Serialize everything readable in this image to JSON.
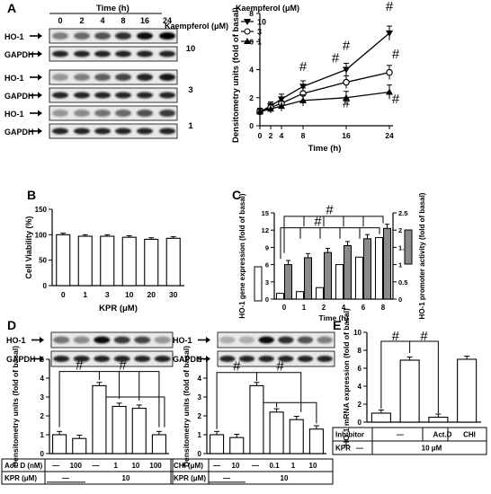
{
  "panels": {
    "A": "A",
    "B": "B",
    "C": "C",
    "D": "D",
    "E": "E"
  },
  "blotA": {
    "time_header": "Time (h)",
    "times": [
      "0",
      "2",
      "4",
      "8",
      "16",
      "24"
    ],
    "kpr_header": "Kaempferol (μM)",
    "groups": [
      {
        "conc": "10",
        "rows": [
          "HO-1",
          "GAPDH"
        ]
      },
      {
        "conc": "3",
        "rows": [
          "HO-1",
          "GAPDH"
        ]
      },
      {
        "conc": "1",
        "rows": [
          "HO-1",
          "GAPDH"
        ]
      }
    ]
  },
  "chart_data": [
    {
      "id": "A",
      "type": "line",
      "xlabel": "Time (h)",
      "ylabel": "Densitometry units (fold of basal)",
      "legend_title": "Kaempferol (μM)",
      "x": [
        0,
        2,
        4,
        8,
        16,
        24
      ],
      "xlim": [
        0,
        24
      ],
      "ylim": [
        0,
        8
      ],
      "yticks": [
        0,
        2,
        4,
        6,
        8
      ],
      "series": [
        {
          "name": "10",
          "values": [
            1,
            1.4,
            1.9,
            2.8,
            4.0,
            6.6
          ]
        },
        {
          "name": "3",
          "values": [
            1,
            1.3,
            1.6,
            2.3,
            3.1,
            3.8
          ]
        },
        {
          "name": "1",
          "values": [
            1,
            1.2,
            1.4,
            1.8,
            2.0,
            2.4
          ]
        }
      ],
      "annotations": [
        "#",
        "#",
        "#",
        "#",
        "#",
        "#",
        "#"
      ]
    },
    {
      "id": "B",
      "type": "bar",
      "xlabel": "KPR (μM)",
      "ylabel": "Cell Viability (%)",
      "categories": [
        "0",
        "1",
        "3",
        "10",
        "20",
        "30"
      ],
      "values": [
        100,
        97,
        97,
        95,
        91,
        93
      ],
      "ylim": [
        0,
        150
      ],
      "yticks": [
        0,
        50,
        100,
        150
      ]
    },
    {
      "id": "C",
      "type": "bar",
      "xlabel": "Time (h)",
      "ylabel": "HO-1 gene expression (fold of basal)",
      "y2label": "HO-1 promoter activity (fold of basal)",
      "categories": [
        "0",
        "1",
        "2",
        "4",
        "6",
        "8"
      ],
      "ylim": [
        0,
        15
      ],
      "yticks": [
        0,
        3,
        6,
        9,
        12,
        15
      ],
      "y2lim": [
        0,
        2.5
      ],
      "y2ticks": [
        0,
        0.5,
        1.0,
        1.5,
        2.0,
        2.5
      ],
      "series": [
        {
          "values": [
            1,
            1.3,
            2.0,
            6.0,
            7.3,
            10.7
          ],
          "axis": "left"
        },
        {
          "values": [
            1.0,
            1.2,
            1.35,
            1.55,
            1.75,
            2.05
          ],
          "axis": "right"
        }
      ],
      "annotations": [
        "#",
        "#"
      ]
    },
    {
      "id": "D1",
      "type": "bar",
      "ylabel": "Densitometry units (fold of basal)",
      "values": [
        1.0,
        0.8,
        3.6,
        2.5,
        2.4,
        1.0
      ],
      "ylim": [
        0,
        5
      ],
      "yticks": [
        0,
        1,
        2,
        3,
        4,
        5
      ],
      "table": {
        "rows": [
          {
            "label": "Act. D (nM)",
            "cells": [
              "—",
              "100",
              "—",
              "1",
              "10",
              "100"
            ]
          },
          {
            "label": "KPR (μM)",
            "cells": [
              "—",
              "10"
            ]
          }
        ]
      },
      "annotations": [
        "#",
        "#"
      ]
    },
    {
      "id": "D2",
      "type": "bar",
      "ylabel": "Densitometry units (fold of basal)",
      "values": [
        1.0,
        0.85,
        3.6,
        2.2,
        1.8,
        1.3
      ],
      "ylim": [
        0,
        5
      ],
      "yticks": [
        0,
        1,
        2,
        3,
        4,
        5
      ],
      "table": {
        "rows": [
          {
            "label": "CHI (μM)",
            "cells": [
              "—",
              "10",
              "—",
              "0.1",
              "1",
              "10"
            ]
          },
          {
            "label": "KPR (μM)",
            "cells": [
              "—",
              "10"
            ]
          }
        ]
      },
      "annotations": [
        "#",
        "#"
      ]
    },
    {
      "id": "E",
      "type": "bar",
      "ylabel": "HO-1 mRNA expression (fold of basal)",
      "values": [
        1.0,
        6.9,
        0.55,
        7.0
      ],
      "ylim": [
        0,
        10
      ],
      "yticks": [
        0,
        2,
        4,
        6,
        8,
        10
      ],
      "table": {
        "rows": [
          {
            "label": "Inhibitor",
            "cells": [
              "—",
              "Act.D",
              "CHI"
            ]
          },
          {
            "label": "KPR",
            "cells": [
              "—",
              "10 μM"
            ]
          }
        ]
      },
      "annotations": [
        "#",
        "#"
      ]
    }
  ],
  "blotD1": {
    "rows": [
      "HO-1",
      "GAPDH"
    ]
  },
  "blotD2": {
    "rows": [
      "HO-1",
      "GAPDH"
    ]
  }
}
